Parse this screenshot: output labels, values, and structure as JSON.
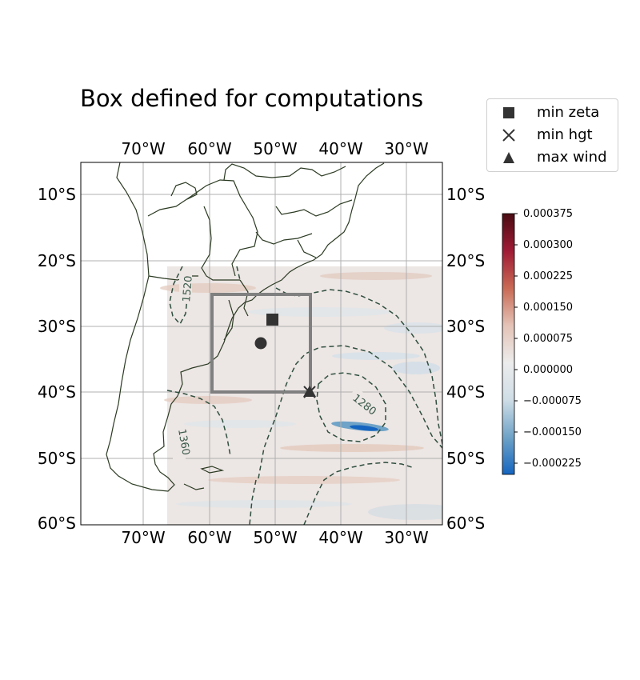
{
  "title": "Box defined for computations",
  "legend": [
    {
      "label": "min zeta",
      "marker": "square"
    },
    {
      "label": "min hgt",
      "marker": "x"
    },
    {
      "label": "max wind",
      "marker": "triangle"
    }
  ],
  "map": {
    "lon_ticks": [
      "70°W",
      "60°W",
      "50°W",
      "40°W",
      "30°W"
    ],
    "lat_ticks": [
      "10°S",
      "20°S",
      "30°S",
      "40°S",
      "50°S",
      "60°S"
    ],
    "extent": {
      "lon_min": -80,
      "lon_max": -25,
      "lat_min": -60,
      "lat_max": -5
    },
    "field_extent": {
      "lon_min": -66.7,
      "lon_max": -25,
      "lat_min": -60,
      "lat_max": -21
    },
    "box": {
      "lon_min": -60,
      "lon_max": -45,
      "lat_min": -40,
      "lat_max": -25
    },
    "markers": {
      "min_zeta": {
        "lon": -50.5,
        "lat": -29
      },
      "min_hgt": {
        "lon": -45,
        "lat": -39.5
      },
      "max_wind": {
        "lon": -45,
        "lat": -40
      },
      "center": {
        "lon": -52,
        "lat": -32.5
      }
    },
    "contour_labels": [
      "1520",
      "1360",
      "1280"
    ],
    "colors": {
      "box": "#808080",
      "marker": "#333333",
      "contour": "#2f4f3f",
      "coast": "#2b3a22",
      "grid": "#b0b0b0"
    }
  },
  "colorbar": {
    "ticks": [
      "0.000375",
      "0.000300",
      "0.000225",
      "0.000150",
      "0.000075",
      "0.000000",
      "−0.000075",
      "−0.000150",
      "−0.000225"
    ],
    "vmin": -0.00027,
    "vmax": 0.000375,
    "colors": [
      "#1565c0",
      "#6fa3c7",
      "#cfdde6",
      "#ececec",
      "#e4c2b6",
      "#c96a55",
      "#a01a35",
      "#4a0c12"
    ]
  }
}
